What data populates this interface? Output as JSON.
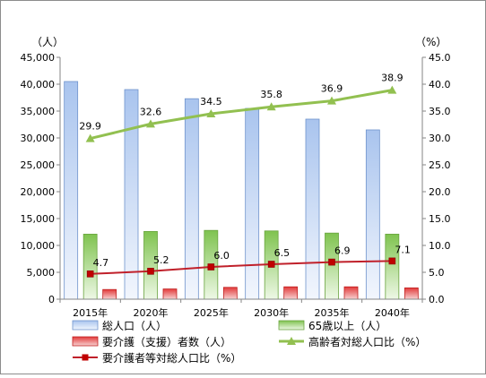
{
  "chart_data": {
    "type": "bar",
    "categories": [
      "2015年",
      "2020年",
      "2025年",
      "2030年",
      "2035年",
      "2040年"
    ],
    "left_axis": {
      "unit_label": "（人）",
      "range": [
        0,
        45000
      ],
      "ticks": [
        "0",
        "5,000",
        "10,000",
        "15,000",
        "20,000",
        "25,000",
        "30,000",
        "35,000",
        "40,000",
        "45,000"
      ]
    },
    "right_axis": {
      "unit_label": "（%）",
      "range": [
        0,
        45
      ],
      "ticks": [
        "0.0",
        "5.0",
        "10.0",
        "15.0",
        "20.0",
        "25.0",
        "30.0",
        "35.0",
        "40.0",
        "45.0"
      ]
    },
    "grid": false,
    "legend_position": "bottom",
    "series": [
      {
        "name": "総人口（人）",
        "kind": "bar",
        "axis": "left",
        "color": "#9bb8e6",
        "values": [
          40500,
          39000,
          37300,
          35500,
          33500,
          31500
        ]
      },
      {
        "name": "65歳以上（人）",
        "kind": "bar",
        "axis": "left",
        "color": "#8ccf5e",
        "values": [
          12100,
          12600,
          12800,
          12700,
          12300,
          12100
        ]
      },
      {
        "name": "要介護（支援）者数（人）",
        "kind": "bar",
        "axis": "left",
        "color": "#e03030",
        "values": [
          1800,
          1900,
          2200,
          2300,
          2300,
          2100
        ]
      },
      {
        "name": "高齢者対総人口比（%）",
        "kind": "line",
        "axis": "right",
        "color": "#92c050",
        "values": [
          29.9,
          32.6,
          34.5,
          35.8,
          36.9,
          38.9
        ],
        "labels": [
          "29.9",
          "32.6",
          "34.5",
          "35.8",
          "36.9",
          "38.9"
        ]
      },
      {
        "name": "要介護者等対総人口比（%）",
        "kind": "line",
        "axis": "right",
        "color": "#c0202a",
        "values": [
          4.7,
          5.2,
          6.0,
          6.5,
          6.9,
          7.1
        ],
        "labels": [
          "4.7",
          "5.2",
          "6.0",
          "6.5",
          "6.9",
          "7.1"
        ]
      }
    ]
  }
}
